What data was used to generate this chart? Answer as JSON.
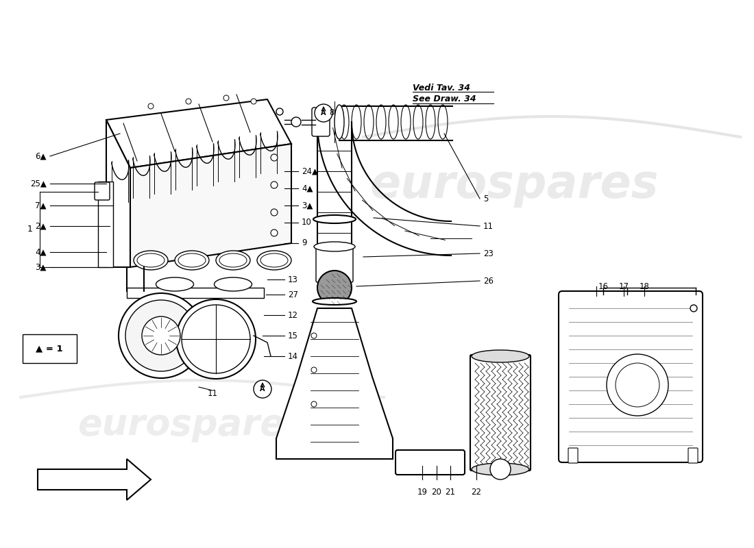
{
  "bg_color": "#ffffff",
  "watermark_text": "eurospares",
  "wm_color": "#cccccc",
  "line_color": "#000000",
  "ref_note_line1": "Vedi Tav. 34",
  "ref_note_line2": "See Draw. 34",
  "legend_text": "▲ = 1"
}
